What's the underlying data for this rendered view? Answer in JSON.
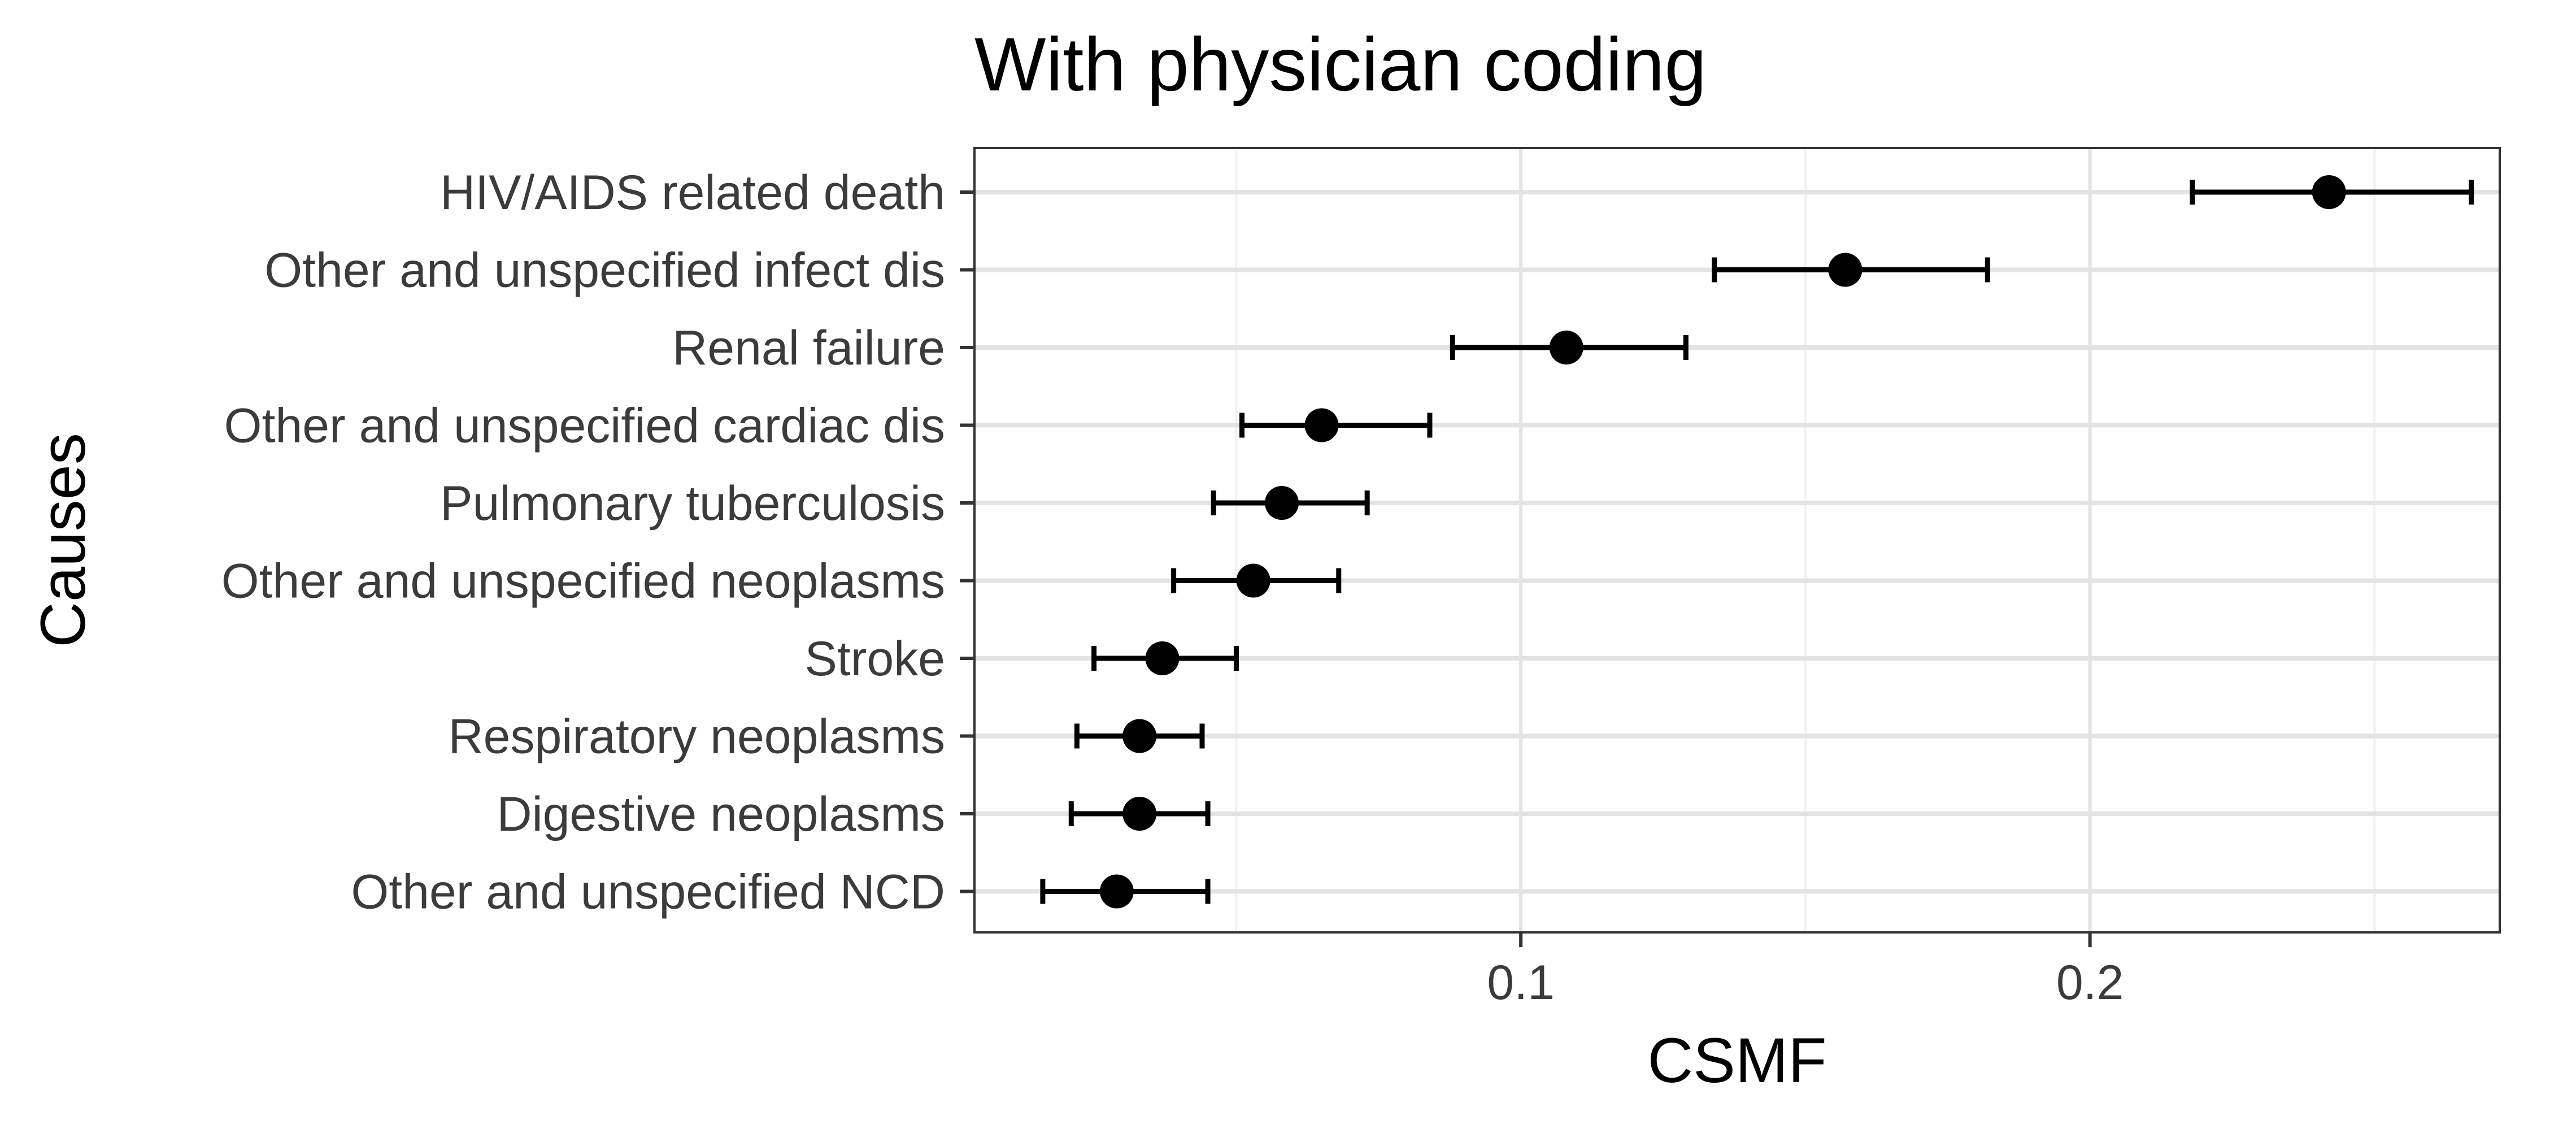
{
  "chart_data": {
    "type": "scatter",
    "subtype": "dot-with-error-bars",
    "title": "With physician coding",
    "xlabel": "CSMF",
    "ylabel": "Causes",
    "xlim": [
      0.004,
      0.272
    ],
    "xticks": [
      0.1,
      0.2
    ],
    "xtick_labels": [
      "0.1",
      "0.2"
    ],
    "x_minor_gridlines": [
      0.05,
      0.15,
      0.25
    ],
    "grid": true,
    "theme": "bw",
    "categories": [
      "HIV/AIDS related death",
      "Other and unspecified infect dis",
      "Renal failure",
      "Other and unspecified cardiac dis",
      "Pulmonary tuberculosis",
      "Other and unspecified neoplasms",
      "Stroke",
      "Respiratory neoplasms",
      "Digestive neoplasms",
      "Other and unspecified NCD"
    ],
    "series": [
      {
        "values": [
          0.242,
          0.157,
          0.108,
          0.065,
          0.058,
          0.053,
          0.037,
          0.033,
          0.033,
          0.029
        ],
        "lower": [
          0.218,
          0.134,
          0.088,
          0.051,
          0.046,
          0.039,
          0.025,
          0.022,
          0.021,
          0.016
        ],
        "upper": [
          0.267,
          0.182,
          0.129,
          0.084,
          0.073,
          0.068,
          0.05,
          0.044,
          0.045,
          0.045
        ]
      }
    ]
  },
  "colors": {
    "points": "#000000",
    "error_bars": "#000000",
    "grid_major": "#e3e3e3",
    "grid_minor": "#f1f1f1",
    "panel_border": "#333333",
    "tick_text": "#3b3b3b"
  }
}
